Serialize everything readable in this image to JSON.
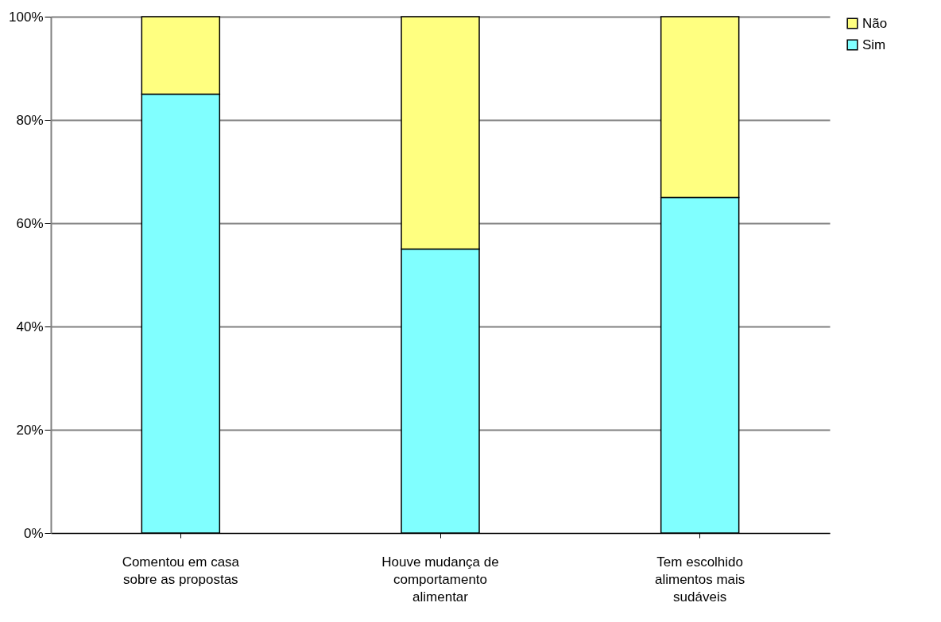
{
  "chart_data": {
    "type": "bar",
    "stacked": true,
    "categories": [
      "Comentou em casa sobre as propostas",
      "Houve mudança de comportamento alimentar",
      "Tem escolhido alimentos mais sudáveis"
    ],
    "series": [
      {
        "name": "Sim",
        "color": "#80ffff",
        "values": [
          85,
          55,
          65
        ]
      },
      {
        "name": "Não",
        "color": "#ffff80",
        "values": [
          15,
          45,
          35
        ]
      }
    ],
    "ylim": [
      0,
      100
    ],
    "yticks": [
      {
        "value": 0,
        "label": "0%"
      },
      {
        "value": 20,
        "label": "20%"
      },
      {
        "value": 40,
        "label": "40%"
      },
      {
        "value": 60,
        "label": "60%"
      },
      {
        "value": 80,
        "label": "80%"
      },
      {
        "value": 100,
        "label": "100%"
      }
    ],
    "grid": "y",
    "legend": "right"
  }
}
